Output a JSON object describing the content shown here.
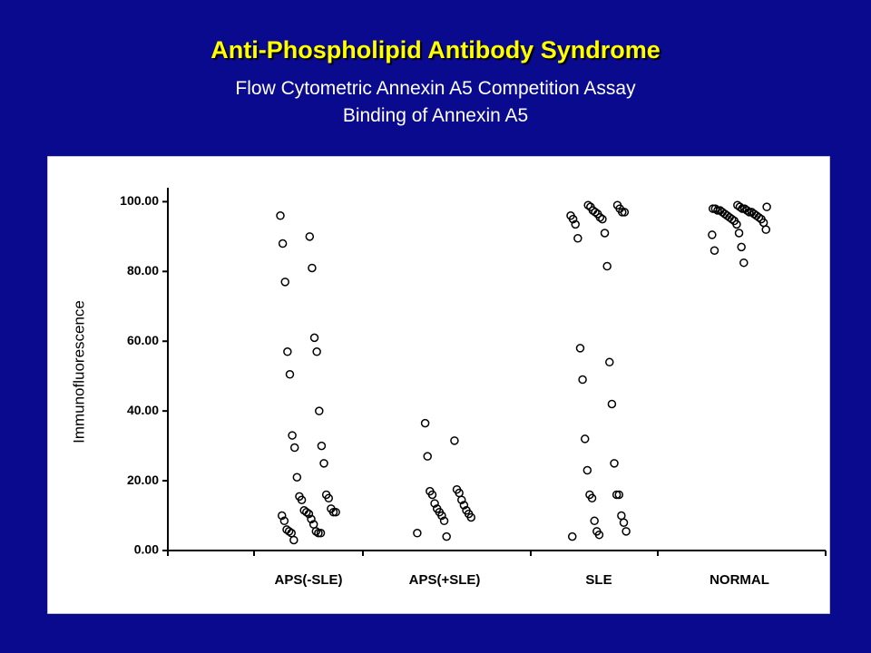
{
  "chart_data": {
    "type": "strip",
    "title": "Anti-Phospholipid Antibody Syndrome",
    "subtitle": [
      "Flow Cytometric Annexin A5 Competition Assay",
      "Binding of Annexin A5"
    ],
    "y_label": "Immunofluorescence",
    "categories": [
      "APS(-SLE)",
      "APS(+SLE)",
      "SLE",
      "NORMAL"
    ],
    "values": [
      [
        96,
        90,
        88,
        81,
        77,
        61,
        57,
        57,
        50.5,
        40,
        33,
        30,
        29.5,
        25,
        21,
        16,
        15.5,
        15,
        14.5,
        12,
        11.5,
        11,
        11,
        11,
        10.5,
        10,
        9,
        8.5,
        7.5,
        6,
        5.5,
        5.5,
        5,
        5,
        5,
        3
      ],
      [
        36.5,
        31.5,
        27,
        17.5,
        17,
        16.5,
        16,
        14.5,
        13.5,
        13,
        12,
        11.5,
        11,
        10.5,
        10,
        9.5,
        8.5,
        5,
        4
      ],
      [
        99,
        99,
        98.5,
        98,
        97.5,
        97,
        97,
        97,
        96.5,
        96,
        95.5,
        95,
        95,
        93.5,
        91,
        89.5,
        81.5,
        58,
        54,
        49,
        42,
        32,
        25,
        23,
        16,
        16,
        16,
        15,
        10,
        8.5,
        8,
        5.5,
        5.5,
        4.5,
        4
      ],
      [
        99,
        98.5,
        98.5,
        98,
        98,
        98,
        98,
        97.5,
        97.5,
        97.5,
        97,
        97,
        97,
        96.5,
        96.5,
        96,
        96,
        95.5,
        95.5,
        95,
        95,
        94.5,
        94,
        93.5,
        92,
        91,
        90.5,
        87,
        86,
        82.5
      ]
    ],
    "ylim": [
      0,
      104
    ],
    "yticks": [
      {
        "value": 0,
        "label": "0.00"
      },
      {
        "value": 20,
        "label": "20.00"
      },
      {
        "value": 40,
        "label": "40.00"
      },
      {
        "value": 60,
        "label": "60.00"
      },
      {
        "value": 80,
        "label": "80.00"
      },
      {
        "value": 100,
        "label": "100.00"
      }
    ],
    "marker_color": "#000000"
  }
}
